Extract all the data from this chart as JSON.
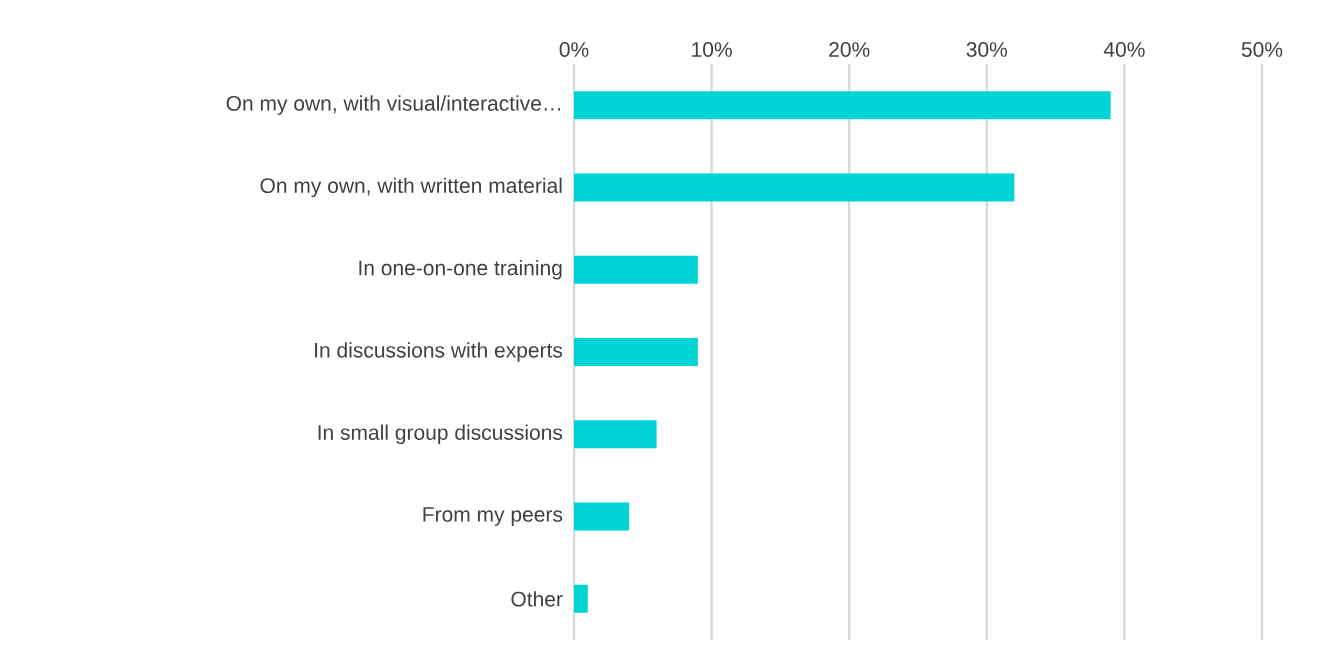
{
  "chart_data": {
    "type": "bar",
    "orientation": "horizontal",
    "categories": [
      "On my own, with visual/interactive…",
      "On my own, with written material",
      "In one-on-one training",
      "In discussions with experts",
      "In small group discussions",
      "From my peers",
      "Other"
    ],
    "values": [
      39,
      32,
      9,
      9,
      6,
      4,
      1
    ],
    "color": "#00d3d6",
    "xlim": [
      0,
      50
    ],
    "xticks": [
      {
        "value": 0,
        "label": "0%"
      },
      {
        "value": 10,
        "label": "10%"
      },
      {
        "value": 20,
        "label": "20%"
      },
      {
        "value": 30,
        "label": "30%"
      },
      {
        "value": 40,
        "label": "40%"
      },
      {
        "value": 50,
        "label": "50%"
      }
    ],
    "grid": "x"
  }
}
